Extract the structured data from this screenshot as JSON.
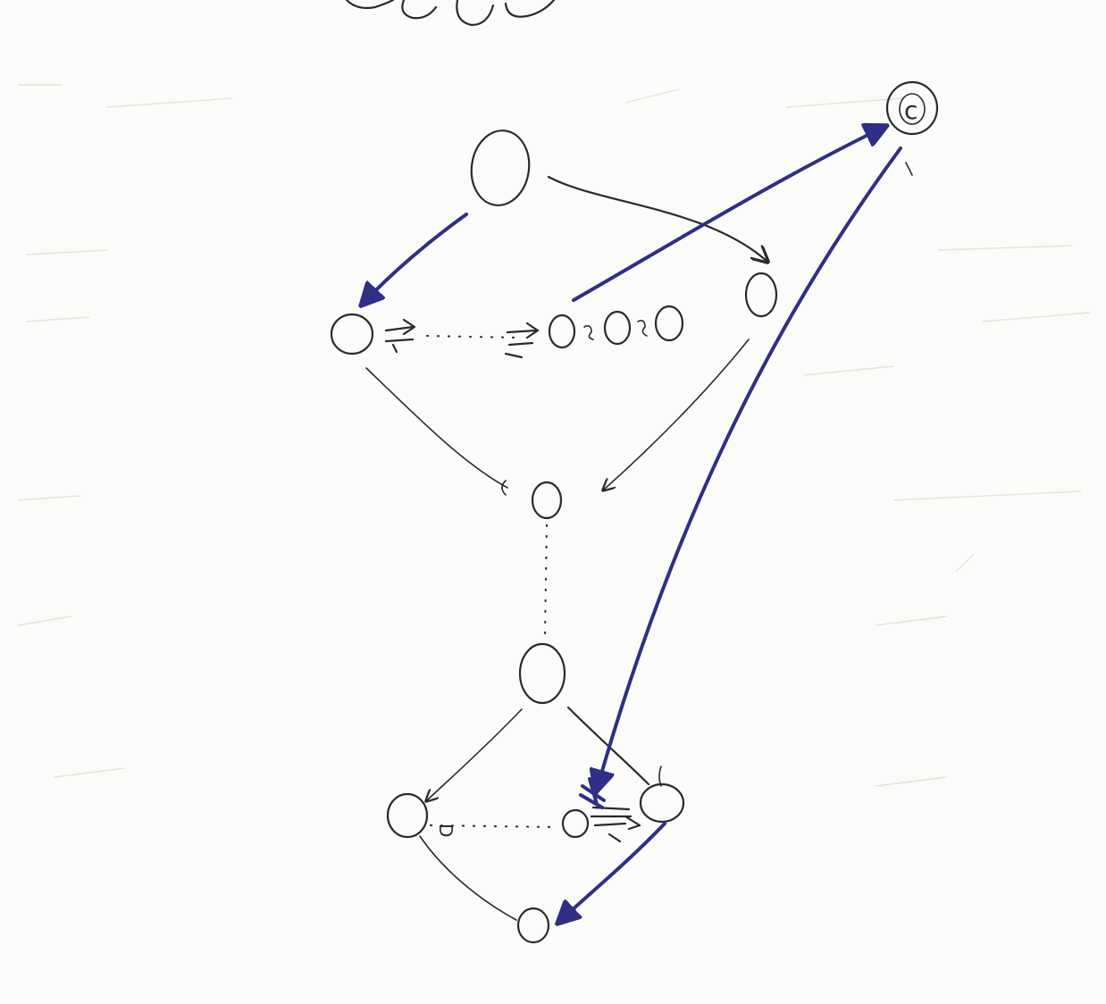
{
  "colors": {
    "pencil": "#2a2a2a",
    "ink": "#2f2f86",
    "paper": "#fbfbf9"
  },
  "nodes": {
    "c_label": "c",
    "d_label": "D"
  }
}
